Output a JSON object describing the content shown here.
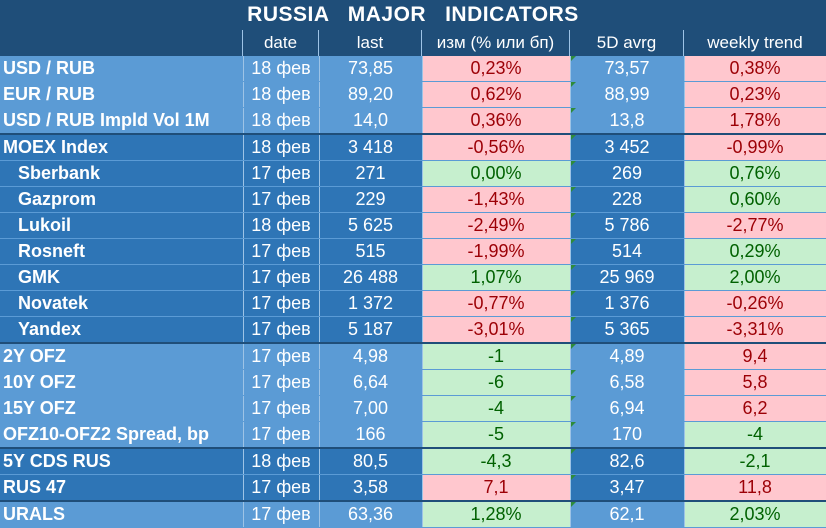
{
  "title": "RUSSIA   MAJOR   INDICATORS",
  "headers": {
    "name": "",
    "date": "date",
    "last": "last",
    "change": "изм (% или бп)",
    "avg5d": "5D avrg",
    "weekly": "weekly trend"
  },
  "colors": {
    "background": "#1f4e79",
    "cell_blue": "#5b9bd5",
    "cell_dark": "#2e75b6",
    "negative_fill": "#ffc7ce",
    "positive_fill": "#c6efce",
    "negative_text": "#9c0006",
    "positive_text": "#006100"
  },
  "rows": [
    {
      "name": "USD / RUB",
      "date": "18 фев",
      "last": "73,85",
      "change": "0,23%",
      "change_sign": "neg",
      "avg5d": "73,57",
      "weekly": "0,38%",
      "weekly_sign": "neg",
      "group": "blue",
      "indent": false,
      "sep": false
    },
    {
      "name": "EUR / RUB",
      "date": "18 фев",
      "last": "89,20",
      "change": "0,62%",
      "change_sign": "neg",
      "avg5d": "88,99",
      "weekly": "0,23%",
      "weekly_sign": "neg",
      "group": "blue",
      "indent": false,
      "sep": false
    },
    {
      "name": "USD / RUB Impld Vol 1M",
      "date": "18 фев",
      "last": "14,0",
      "change": "0,36%",
      "change_sign": "neg",
      "avg5d": "13,8",
      "weekly": "1,78%",
      "weekly_sign": "neg",
      "group": "blue",
      "indent": false,
      "sep": false
    },
    {
      "name": "MOEX Index",
      "date": "18 фев",
      "last": "3 418",
      "change": "-0,56%",
      "change_sign": "neg",
      "avg5d": "3 452",
      "weekly": "-0,99%",
      "weekly_sign": "neg",
      "group": "dark",
      "indent": false,
      "sep": true
    },
    {
      "name": "Sberbank",
      "date": "17 фев",
      "last": "271",
      "change": "0,00%",
      "change_sign": "pos",
      "avg5d": "269",
      "weekly": "0,76%",
      "weekly_sign": "pos",
      "group": "dark",
      "indent": true,
      "sep": false
    },
    {
      "name": "Gazprom",
      "date": "17 фев",
      "last": "229",
      "change": "-1,43%",
      "change_sign": "neg",
      "avg5d": "228",
      "weekly": "0,60%",
      "weekly_sign": "pos",
      "group": "dark",
      "indent": true,
      "sep": false
    },
    {
      "name": "Lukoil",
      "date": "18 фев",
      "last": "5 625",
      "change": "-2,49%",
      "change_sign": "neg",
      "avg5d": "5 786",
      "weekly": "-2,77%",
      "weekly_sign": "neg",
      "group": "dark",
      "indent": true,
      "sep": false
    },
    {
      "name": "Rosneft",
      "date": "17 фев",
      "last": "515",
      "change": "-1,99%",
      "change_sign": "neg",
      "avg5d": "514",
      "weekly": "0,29%",
      "weekly_sign": "pos",
      "group": "dark",
      "indent": true,
      "sep": false
    },
    {
      "name": "GMK",
      "date": "17 фев",
      "last": "26 488",
      "change": "1,07%",
      "change_sign": "pos",
      "avg5d": "25 969",
      "weekly": "2,00%",
      "weekly_sign": "pos",
      "group": "dark",
      "indent": true,
      "sep": false
    },
    {
      "name": "Novatek",
      "date": "17 фев",
      "last": "1 372",
      "change": "-0,77%",
      "change_sign": "neg",
      "avg5d": "1 376",
      "weekly": "-0,26%",
      "weekly_sign": "neg",
      "group": "dark",
      "indent": true,
      "sep": false
    },
    {
      "name": "Yandex",
      "date": "17 фев",
      "last": "5 187",
      "change": "-3,01%",
      "change_sign": "neg",
      "avg5d": "5 365",
      "weekly": "-3,31%",
      "weekly_sign": "neg",
      "group": "dark",
      "indent": true,
      "sep": false
    },
    {
      "name": "2Y OFZ",
      "date": "17 фев",
      "last": "4,98",
      "change": "-1",
      "change_sign": "pos",
      "avg5d": "4,89",
      "weekly": "9,4",
      "weekly_sign": "neg",
      "group": "blue",
      "indent": false,
      "sep": true
    },
    {
      "name": "10Y OFZ",
      "date": "17 фев",
      "last": "6,64",
      "change": "-6",
      "change_sign": "pos",
      "avg5d": "6,58",
      "weekly": "5,8",
      "weekly_sign": "neg",
      "group": "blue",
      "indent": false,
      "sep": false
    },
    {
      "name": "15Y OFZ",
      "date": "17 фев",
      "last": "7,00",
      "change": "-4",
      "change_sign": "pos",
      "avg5d": "6,94",
      "weekly": "6,2",
      "weekly_sign": "neg",
      "group": "blue",
      "indent": false,
      "sep": false
    },
    {
      "name": "OFZ10-OFZ2 Spread, bp",
      "date": "17 фев",
      "last": "166",
      "change": "-5",
      "change_sign": "pos",
      "avg5d": "170",
      "weekly": "-4",
      "weekly_sign": "pos",
      "group": "blue",
      "indent": false,
      "sep": false
    },
    {
      "name": "5Y CDS RUS",
      "date": "18 фев",
      "last": "80,5",
      "change": "-4,3",
      "change_sign": "pos",
      "avg5d": "82,6",
      "weekly": "-2,1",
      "weekly_sign": "pos",
      "group": "dark",
      "indent": false,
      "sep": true
    },
    {
      "name": "RUS 47",
      "date": "17 фев",
      "last": "3,58",
      "change": "7,1",
      "change_sign": "neg",
      "avg5d": "3,47",
      "weekly": "11,8",
      "weekly_sign": "neg",
      "group": "dark",
      "indent": false,
      "sep": false
    },
    {
      "name": "URALS",
      "date": "17 фев",
      "last": "63,36",
      "change": "1,28%",
      "change_sign": "pos",
      "avg5d": "62,1",
      "weekly": "2,03%",
      "weekly_sign": "pos",
      "group": "blue",
      "indent": false,
      "sep": true
    }
  ]
}
